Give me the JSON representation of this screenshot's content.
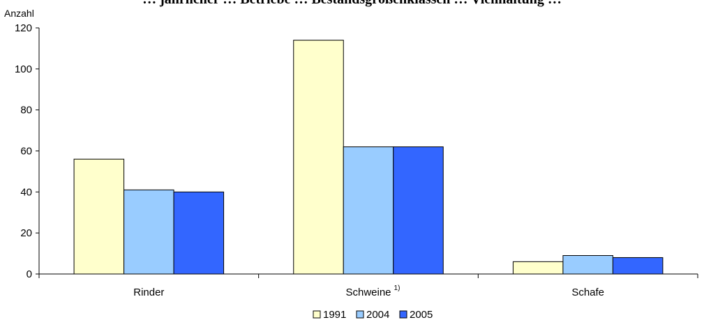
{
  "chart_data": {
    "type": "bar",
    "title": "… jährlicher … Betriebe … Bestandsgrößenklassen … Viehhaltung …",
    "ylabel": "Anzahl",
    "xlabel": "",
    "categories": [
      "Rinder",
      "Schweine",
      "Schafe"
    ],
    "category_footnotes": [
      "",
      "1)",
      ""
    ],
    "ylim": [
      0,
      120
    ],
    "yticks": [
      0,
      20,
      40,
      60,
      80,
      100,
      120
    ],
    "grid": false,
    "legend_position": "bottom-center",
    "series": [
      {
        "name": "1991",
        "values": [
          56,
          114,
          6
        ],
        "color": "#ffffcc"
      },
      {
        "name": "2004",
        "values": [
          41,
          62,
          9
        ],
        "color": "#99ccff"
      },
      {
        "name": "2005",
        "values": [
          40,
          62,
          8
        ],
        "color": "#3366ff"
      }
    ]
  }
}
